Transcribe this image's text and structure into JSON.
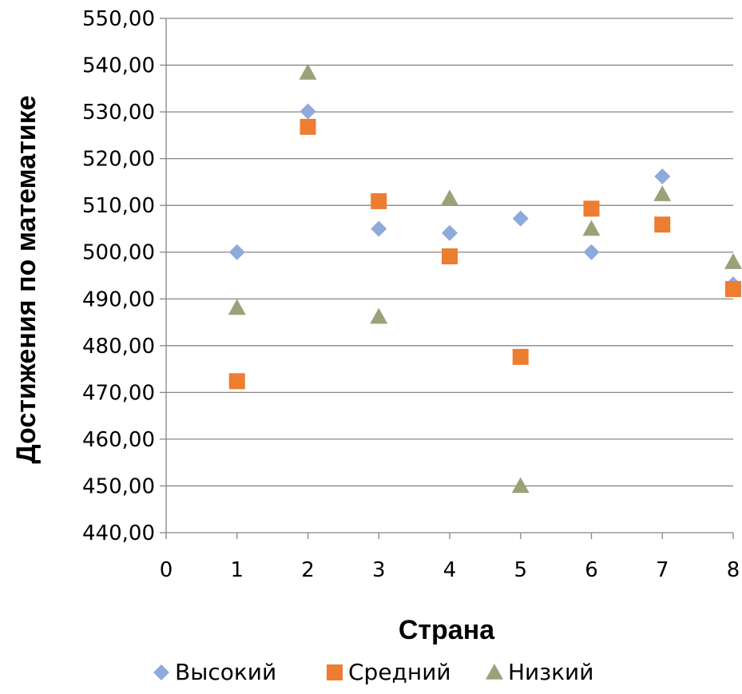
{
  "chart_data": {
    "type": "scatter",
    "title": "",
    "xlabel": "Страна",
    "ylabel": "Достижения по математике",
    "xlim": [
      0,
      8
    ],
    "ylim": [
      440,
      550
    ],
    "x_ticks": [
      "0",
      "1",
      "2",
      "3",
      "4",
      "5",
      "6",
      "7",
      "8"
    ],
    "y_ticks": [
      "440,00",
      "450,00",
      "460,00",
      "470,00",
      "480,00",
      "490,00",
      "500,00",
      "510,00",
      "520,00",
      "530,00",
      "540,00",
      "550,00"
    ],
    "grid": "horizontal",
    "legend_position": "bottom",
    "series": [
      {
        "name": "Высокий",
        "marker": "diamond",
        "color": "#8EAADB",
        "x": [
          1,
          2,
          3,
          4,
          5,
          6,
          7,
          8
        ],
        "y": [
          500.0,
          530.1,
          505.0,
          504.1,
          507.2,
          500.0,
          516.2,
          493.1
        ]
      },
      {
        "name": "Средний",
        "marker": "square",
        "color": "#ED7D31",
        "x": [
          1,
          2,
          3,
          4,
          5,
          6,
          7,
          8
        ],
        "y": [
          472.4,
          526.8,
          510.9,
          499.1,
          477.6,
          509.3,
          505.9,
          492.1
        ]
      },
      {
        "name": "Низкий",
        "marker": "triangle",
        "color": "#9AA27A",
        "x": [
          1,
          2,
          3,
          4,
          5,
          6,
          7,
          8
        ],
        "y": [
          488.1,
          538.4,
          486.2,
          511.5,
          450.0,
          505.0,
          512.4,
          497.9
        ]
      }
    ]
  }
}
